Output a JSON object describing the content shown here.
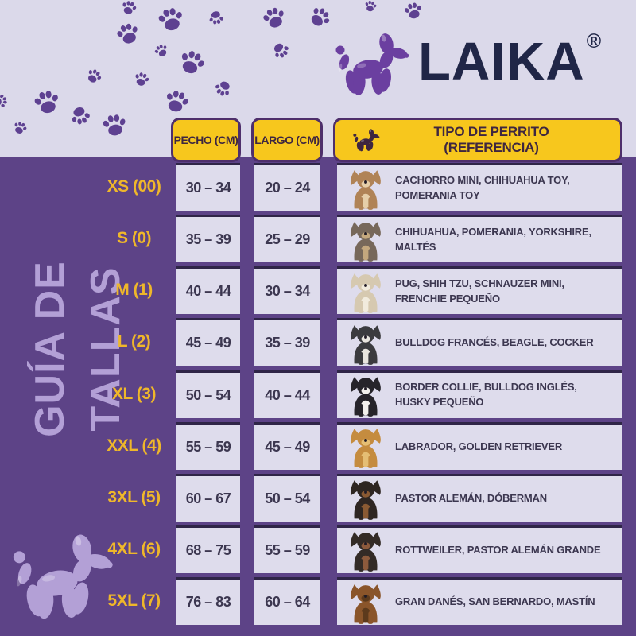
{
  "brand": {
    "wordmark": "LAIKA",
    "registered": "®",
    "logo_icon": "balloon-dog-icon"
  },
  "sidebar_title": "GUÍA DE TALLAS",
  "table": {
    "headers": {
      "chest": "PECHO (CM)",
      "length": "LARGO (CM)",
      "reference": "TIPO DE PERRITO (REFERENCIA)",
      "reference_icon": "balloon-dog-icon"
    },
    "rows": [
      {
        "size": "XS (00)",
        "chest": "30 – 34",
        "length": "20 – 24",
        "breeds": "CACHORRO MINI, CHIHUAHUA TOY, POMERANIA TOY",
        "dog": {
          "icon": "chihuahua-photo",
          "main": "#B08356",
          "accent": "#E6CFA9"
        }
      },
      {
        "size": "S (0)",
        "chest": "35 – 39",
        "length": "25 – 29",
        "breeds": "CHIHUAHUA, POMERANIA, YORKSHIRE, MALTÉS",
        "dog": {
          "icon": "yorkshire-photo",
          "main": "#77685A",
          "accent": "#C4A87E"
        }
      },
      {
        "size": "M (1)",
        "chest": "40 – 44",
        "length": "30 – 34",
        "breeds": "PUG, SHIH TZU, SCHNAUZER MINI, FRENCHIE PEQUEÑO",
        "dog": {
          "icon": "shih-tzu-photo",
          "main": "#D6C9B0",
          "accent": "#F1EBDD"
        }
      },
      {
        "size": "L (2)",
        "chest": "45 – 49",
        "length": "35 – 39",
        "breeds": "BULLDOG FRANCÉS, BEAGLE, COCKER",
        "dog": {
          "icon": "french-bulldog-photo",
          "main": "#3B3B3E",
          "accent": "#E9E5DE"
        }
      },
      {
        "size": "XL (3)",
        "chest": "50 – 54",
        "length": "40 – 44",
        "breeds": "BORDER COLLIE, BULLDOG INGLÉS, HUSKY PEQUEÑO",
        "dog": {
          "icon": "border-collie-photo",
          "main": "#26242A",
          "accent": "#F2F0EC"
        }
      },
      {
        "size": "XXL (4)",
        "chest": "55 – 59",
        "length": "45 – 49",
        "breeds": "LABRADOR, GOLDEN RETRIEVER",
        "dog": {
          "icon": "golden-retriever-photo",
          "main": "#C58C3F",
          "accent": "#E5BE74"
        }
      },
      {
        "size": "3XL (5)",
        "chest": "60 – 67",
        "length": "50 – 54",
        "breeds": "PASTOR ALEMÁN, DÓBERMAN",
        "dog": {
          "icon": "doberman-photo",
          "main": "#2E2622",
          "accent": "#8A5A33"
        }
      },
      {
        "size": "4XL (6)",
        "chest": "68 – 75",
        "length": "55 – 59",
        "breeds": "ROTTWEILER, PASTOR ALEMÁN GRANDE",
        "dog": {
          "icon": "rottweiler-photo",
          "main": "#332B26",
          "accent": "#8C5A3C"
        }
      },
      {
        "size": "5XL (7)",
        "chest": "76 – 83",
        "length": "60 – 64",
        "breeds": "GRAN DANÉS, SAN BERNARDO, MASTÍN",
        "dog": {
          "icon": "mastiff-photo",
          "main": "#8A552A",
          "accent": "#5C3A1C"
        }
      }
    ]
  },
  "decor": {
    "paw_icon": "paw-print-icon",
    "corner_icon": "balloon-dog-icon"
  },
  "colors": {
    "lavender": "#DBD9EA",
    "purple": "#5D4387",
    "paw_purple": "#5E4191",
    "yellow": "#F7C71D",
    "gold_label": "#EFB72A",
    "navy": "#202647",
    "logo_purple": "#6B3FA0",
    "light_purple": "#B3A0D6",
    "cell_bg": "#DEDCEC",
    "cell_border": "#2F2547",
    "text_dark": "#3C3750",
    "header_text": "#3E2640",
    "header_border": "#4E2F6B"
  }
}
